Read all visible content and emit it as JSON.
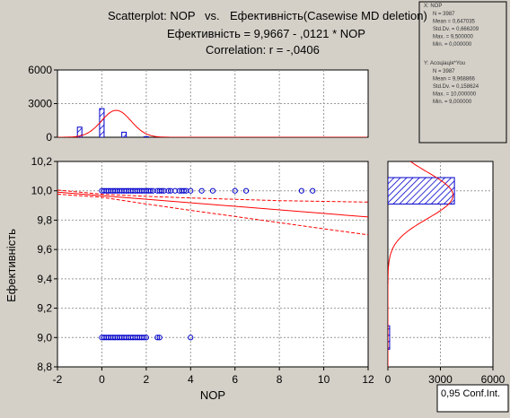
{
  "header": {
    "title_left": "Scatterplot: NOP",
    "title_vs": "vs.",
    "title_right": "Ефективність(Casewise MD deletion)",
    "equation": "Ефективність = 9,9667 - ,0121  * NOP",
    "correlation": "Correlation: r = -,0406"
  },
  "stats_box": {
    "x_block": {
      "label": "X:  NOP",
      "lines": [
        "N = 3987",
        "Mean = 0,647035",
        "Std.Dv. = 0,666209",
        "Max. = 9,500000",
        "Min. = 0,000000"
      ]
    },
    "y_block": {
      "label": "Y:  Асоціація*You",
      "lines": [
        "N = 3987",
        "Mean = 9,968866",
        "Std.Dv. = 0,158624",
        "Max. = 10,000000",
        "Min. = 9,000000"
      ]
    }
  },
  "footer_button": "0,95 Conf.Int.",
  "colors": {
    "background": "#d4d0c8",
    "plot_bg": "#ffffff",
    "points": "#0000cc",
    "regression": "#ff0000",
    "bars": "#0000cc"
  },
  "chart_data": [
    {
      "type": "scatter",
      "xlabel": "NOP",
      "ylabel": "Ефективність",
      "xlim": [
        -2,
        12
      ],
      "ylim": [
        8.8,
        10.2
      ],
      "x_ticks": [
        "-2",
        "0",
        "2",
        "4",
        "6",
        "8",
        "10",
        "12"
      ],
      "y_ticks": [
        "8,8",
        "9,0",
        "9,2",
        "9,4",
        "9,6",
        "9,8",
        "10,0",
        "10,2"
      ],
      "grid": true,
      "points": {
        "y10_x": [
          0,
          0.1,
          0.2,
          0.3,
          0.4,
          0.5,
          0.6,
          0.7,
          0.8,
          0.9,
          1.0,
          1.1,
          1.2,
          1.3,
          1.4,
          1.5,
          1.6,
          1.7,
          1.8,
          1.9,
          2.0,
          2.1,
          2.2,
          2.3,
          2.5,
          2.6,
          2.7,
          2.8,
          3.0,
          3.1,
          3.3,
          3.5,
          3.6,
          3.7,
          3.8,
          4.0,
          4.5,
          5.0,
          6.0,
          6.5,
          9.0,
          9.5
        ],
        "y9_x": [
          0,
          0.1,
          0.2,
          0.3,
          0.4,
          0.5,
          0.6,
          0.7,
          0.8,
          0.9,
          1.0,
          1.1,
          1.2,
          1.3,
          1.4,
          1.5,
          1.6,
          1.7,
          1.8,
          1.9,
          2.0,
          2.5,
          2.6,
          4.0
        ]
      },
      "regression": {
        "intercept": 9.9667,
        "slope": -0.0121
      },
      "confidence_band": {
        "upper": [
          [
            -2,
            10.005
          ],
          [
            0,
            9.977
          ],
          [
            2,
            9.962
          ],
          [
            4,
            9.951
          ],
          [
            6,
            9.942
          ],
          [
            8,
            9.933
          ],
          [
            10,
            9.928
          ],
          [
            12,
            9.923
          ]
        ],
        "lower": [
          [
            -2,
            9.977
          ],
          [
            0,
            9.956
          ],
          [
            2,
            9.91
          ],
          [
            4,
            9.867
          ],
          [
            6,
            9.825
          ],
          [
            8,
            9.783
          ],
          [
            10,
            9.741
          ],
          [
            12,
            9.7
          ]
        ]
      }
    },
    {
      "type": "bar",
      "orientation": "vertical",
      "variable": "NOP",
      "xlim": [
        -2,
        12
      ],
      "ylim": [
        0,
        6000
      ],
      "y_ticks": [
        "0",
        "3000",
        "6000"
      ],
      "bins": [
        -1,
        0,
        1,
        2
      ],
      "values": [
        900,
        2550,
        450,
        40
      ],
      "fitted_curve": {
        "mean": 0.647,
        "sd": 0.666,
        "peak": 2400
      }
    },
    {
      "type": "bar",
      "orientation": "horizontal",
      "variable": "Ефективність",
      "xlim": [
        0,
        6000
      ],
      "x_ticks": [
        "0",
        "3000",
        "6000"
      ],
      "bins": [
        9.0,
        10.0
      ],
      "values": [
        100,
        3800
      ],
      "fitted_curve": {
        "mean": 9.9689,
        "sd": 0.1586
      }
    }
  ]
}
